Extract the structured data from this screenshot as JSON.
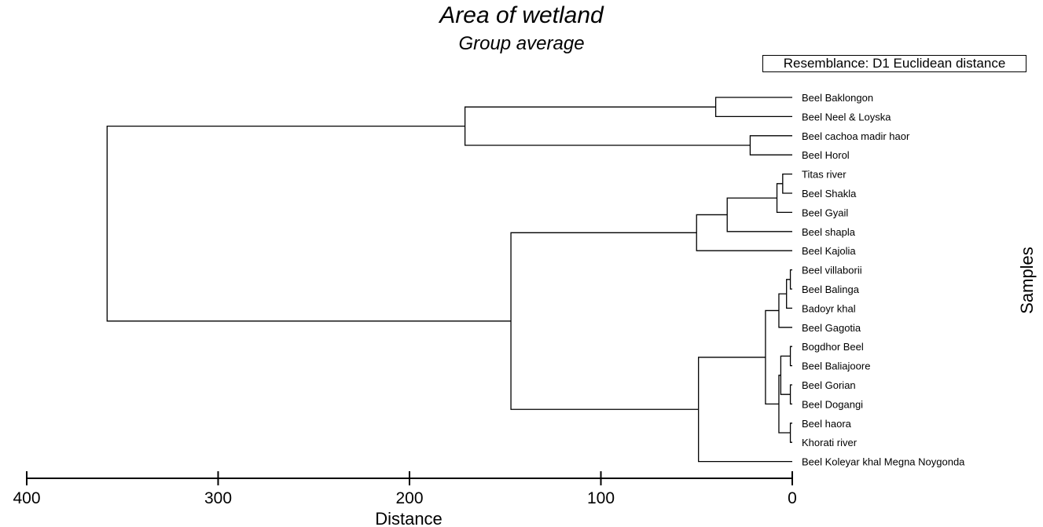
{
  "chart_data": {
    "type": "dendrogram",
    "title": "Area of wetland",
    "subtitle": "Group average",
    "legend": "Resemblance: D1 Euclidean distance",
    "xlabel": "Distance",
    "ylabel": "Samples",
    "xlim": [
      400,
      0
    ],
    "xticks": [
      400,
      300,
      200,
      100,
      0
    ],
    "leaves": [
      "Beel Baklongon",
      "Beel Neel & Loyska",
      "Beel cachoa madir haor",
      "Beel Horol",
      "Titas river",
      "Beel Shakla",
      "Beel Gyail",
      "Beel shapla",
      "Beel Kajolia",
      "Beel villaborii",
      "Beel Balinga",
      "Badoyr khal",
      "Beel Gagotia",
      "Bogdhor Beel",
      "Beel Baliajoore",
      "Beel Gorian",
      "Beel Dogangi",
      "Beel haora",
      "Khorati river",
      "Beel Koleyar khal Megna Noygonda"
    ],
    "merges": [
      {
        "id": "m1",
        "left": 0,
        "right": 1,
        "height": 40
      },
      {
        "id": "m2",
        "left": 2,
        "right": 3,
        "height": 22
      },
      {
        "id": "m3",
        "left": "m1",
        "right": "m2",
        "height": 171
      },
      {
        "id": "m4",
        "left": 4,
        "right": 5,
        "height": 5
      },
      {
        "id": "m5",
        "left": "m4",
        "right": 6,
        "height": 8
      },
      {
        "id": "m6",
        "left": "m5",
        "right": 7,
        "height": 34
      },
      {
        "id": "m7",
        "left": "m6",
        "right": 8,
        "height": 50
      },
      {
        "id": "m8",
        "left": 9,
        "right": 10,
        "height": 1
      },
      {
        "id": "m9",
        "left": "m8",
        "right": 11,
        "height": 3
      },
      {
        "id": "m10",
        "left": "m9",
        "right": 12,
        "height": 7
      },
      {
        "id": "m11",
        "left": 13,
        "right": 14,
        "height": 1
      },
      {
        "id": "m12",
        "left": 15,
        "right": 16,
        "height": 1
      },
      {
        "id": "m13",
        "left": "m11",
        "right": "m12",
        "height": 6
      },
      {
        "id": "m14",
        "left": 17,
        "right": 18,
        "height": 1
      },
      {
        "id": "m15",
        "left": "m13",
        "right": "m14",
        "height": 7
      },
      {
        "id": "m16",
        "left": "m10",
        "right": "m15",
        "height": 14
      },
      {
        "id": "m17",
        "left": "m16",
        "right": 19,
        "height": 49
      },
      {
        "id": "m18",
        "left": "m7",
        "right": "m17",
        "height": 147
      },
      {
        "id": "m19",
        "left": "m3",
        "right": "m18",
        "height": 358
      }
    ]
  }
}
